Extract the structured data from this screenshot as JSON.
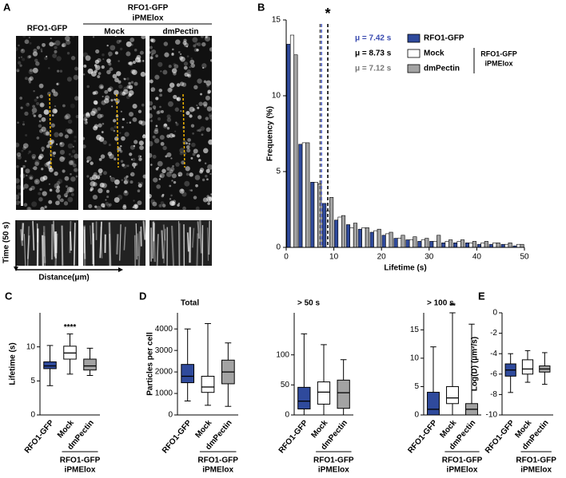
{
  "figure_a": {
    "panel": "A",
    "single": "RFO1-GFP",
    "group": [
      "RFO1-GFP",
      "iPMElox"
    ],
    "mock": "Mock",
    "dmpectin": "dmPectin",
    "time_axis": "Time (50 s)",
    "distance_axis": "Distance(μm)"
  },
  "chart_data": [
    {
      "type": "histogram",
      "panel": "B",
      "xlabel": "Lifetime (s)",
      "ylabel": "Frequency (%)",
      "bins": [
        0,
        2.5,
        5,
        7.5,
        10,
        12.5,
        15,
        17.5,
        20,
        22.5,
        25,
        27.5,
        30,
        32.5,
        35,
        37.5,
        40,
        42.5,
        45,
        47.5,
        50
      ],
      "series": [
        {
          "name": "RFO1-GFP",
          "color": "#2f4a9c",
          "mean": 7.42,
          "mean_label": "μ = 7.42 s",
          "values": [
            13.4,
            6.8,
            4.3,
            2.9,
            1.8,
            1.5,
            1.2,
            1.0,
            0.8,
            0.6,
            0.5,
            0.4,
            0.4,
            0.3,
            0.3,
            0.3,
            0.2,
            0.2,
            0.2,
            0.1
          ]
        },
        {
          "name": "Mock",
          "color": "#ffffff",
          "mean": 8.73,
          "mean_label": "μ = 8.73 s",
          "values": [
            14.0,
            6.9,
            4.3,
            2.4,
            2.0,
            1.3,
            1.3,
            1.1,
            0.9,
            0.6,
            0.5,
            0.5,
            0.4,
            0.4,
            0.4,
            0.3,
            0.3,
            0.3,
            0.2,
            0.2
          ]
        },
        {
          "name": "dmPectin",
          "color": "#a3a3a3",
          "mean": 7.12,
          "mean_label": "μ = 7.12 s",
          "values": [
            12.7,
            6.9,
            4.2,
            3.3,
            2.1,
            1.6,
            1.3,
            1.2,
            1.0,
            0.8,
            0.7,
            0.6,
            0.8,
            0.5,
            0.5,
            0.4,
            0.4,
            0.3,
            0.3,
            0.2
          ]
        }
      ],
      "group_label": [
        "RFO1-GFP",
        "iPMElox"
      ],
      "annotation": "*",
      "xlim": [
        0,
        50
      ],
      "xticks": [
        0,
        10,
        20,
        30,
        40,
        50
      ],
      "ylim": [
        0,
        15
      ],
      "yticks": [
        0,
        5,
        10,
        15
      ]
    },
    {
      "type": "box",
      "panel": "C",
      "ylabel": "Lifetime (s)",
      "categories": [
        "RFO1-GFP",
        "Mock",
        "dmPectin"
      ],
      "colors": [
        "#2f4a9c",
        "#ffffff",
        "#a3a3a3"
      ],
      "boxes": [
        {
          "min": 4.3,
          "q1": 6.8,
          "median": 7.2,
          "q3": 7.8,
          "max": 10.2
        },
        {
          "min": 6.0,
          "q1": 8.2,
          "median": 9.1,
          "q3": 10.1,
          "max": 11.9
        },
        {
          "min": 5.8,
          "q1": 6.6,
          "median": 7.2,
          "q3": 8.2,
          "max": 9.8
        }
      ],
      "annotations": [
        null,
        "****",
        null
      ],
      "group_label": [
        "RFO1-GFP",
        "iPMElox"
      ],
      "ylim": [
        0,
        15
      ],
      "yticks": [
        0,
        5,
        10
      ]
    },
    {
      "type": "box",
      "panel": "D",
      "title": "Total",
      "ylabel": "Particles per cell",
      "categories": [
        "RFO1-GFP",
        "Mock",
        "dmPectin"
      ],
      "colors": [
        "#2f4a9c",
        "#ffffff",
        "#a3a3a3"
      ],
      "boxes": [
        {
          "min": 650,
          "q1": 1500,
          "median": 1800,
          "q3": 2350,
          "max": 4000
        },
        {
          "min": 450,
          "q1": 1050,
          "median": 1300,
          "q3": 1800,
          "max": 4250
        },
        {
          "min": 400,
          "q1": 1450,
          "median": 2000,
          "q3": 2550,
          "max": 3350
        }
      ],
      "group_label": [
        "RFO1-GFP",
        "iPMElox"
      ],
      "ylim": [
        0,
        4750
      ],
      "yticks": [
        0,
        1000,
        2000,
        3000,
        4000
      ]
    },
    {
      "type": "box",
      "title": "> 50 s",
      "categories": [
        "RFO1-GFP",
        "Mock",
        "dmPectin"
      ],
      "colors": [
        "#2f4a9c",
        "#ffffff",
        "#a3a3a3"
      ],
      "boxes": [
        {
          "min": 0,
          "q1": 10,
          "median": 23,
          "q3": 46,
          "max": 135
        },
        {
          "min": 0,
          "q1": 18,
          "median": 38,
          "q3": 55,
          "max": 117
        },
        {
          "min": 0,
          "q1": 11,
          "median": 37,
          "q3": 58,
          "max": 92
        }
      ],
      "group_label": [
        "RFO1-GFP",
        "iPMElox"
      ],
      "ylim": [
        0,
        170
      ],
      "yticks": [
        0,
        50,
        100
      ]
    },
    {
      "type": "box",
      "title": "> 100 s",
      "categories": [
        "RFO1-GFP",
        "Mock",
        "dmPectin"
      ],
      "colors": [
        "#2f4a9c",
        "#ffffff",
        "#a3a3a3"
      ],
      "boxes": [
        {
          "min": 0,
          "q1": 0,
          "median": 1,
          "q3": 4,
          "max": 12
        },
        {
          "min": 0,
          "q1": 2,
          "median": 3,
          "q3": 5,
          "max": 18
        },
        {
          "min": 0,
          "q1": 0,
          "median": 1,
          "q3": 2,
          "max": 16
        }
      ],
      "annotations": [
        null,
        "**",
        null
      ],
      "group_label": [
        "RFO1-GFP",
        "iPMElox"
      ],
      "ylim": [
        0,
        18
      ],
      "yticks": [
        0,
        5,
        10,
        15
      ]
    },
    {
      "type": "box",
      "panel": "E",
      "ylabel": "Log(D) (μm²/s)",
      "categories": [
        "RFO1-GFP",
        "Mock",
        "dmPectin"
      ],
      "colors": [
        "#2f4a9c",
        "#ffffff",
        "#a3a3a3"
      ],
      "boxes": [
        {
          "min": -7.8,
          "q1": -6.2,
          "median": -5.6,
          "q3": -5.0,
          "max": -4.0
        },
        {
          "min": -6.8,
          "q1": -6.0,
          "median": -5.5,
          "q3": -4.6,
          "max": -3.7
        },
        {
          "min": -7.0,
          "q1": -5.8,
          "median": -5.5,
          "q3": -5.2,
          "max": -3.9
        }
      ],
      "group_label": [
        "RFO1-GFP",
        "iPMElox"
      ],
      "ylim": [
        -10,
        0
      ],
      "yticks": [
        0,
        -2,
        -4,
        -6,
        -8,
        -10
      ]
    }
  ]
}
